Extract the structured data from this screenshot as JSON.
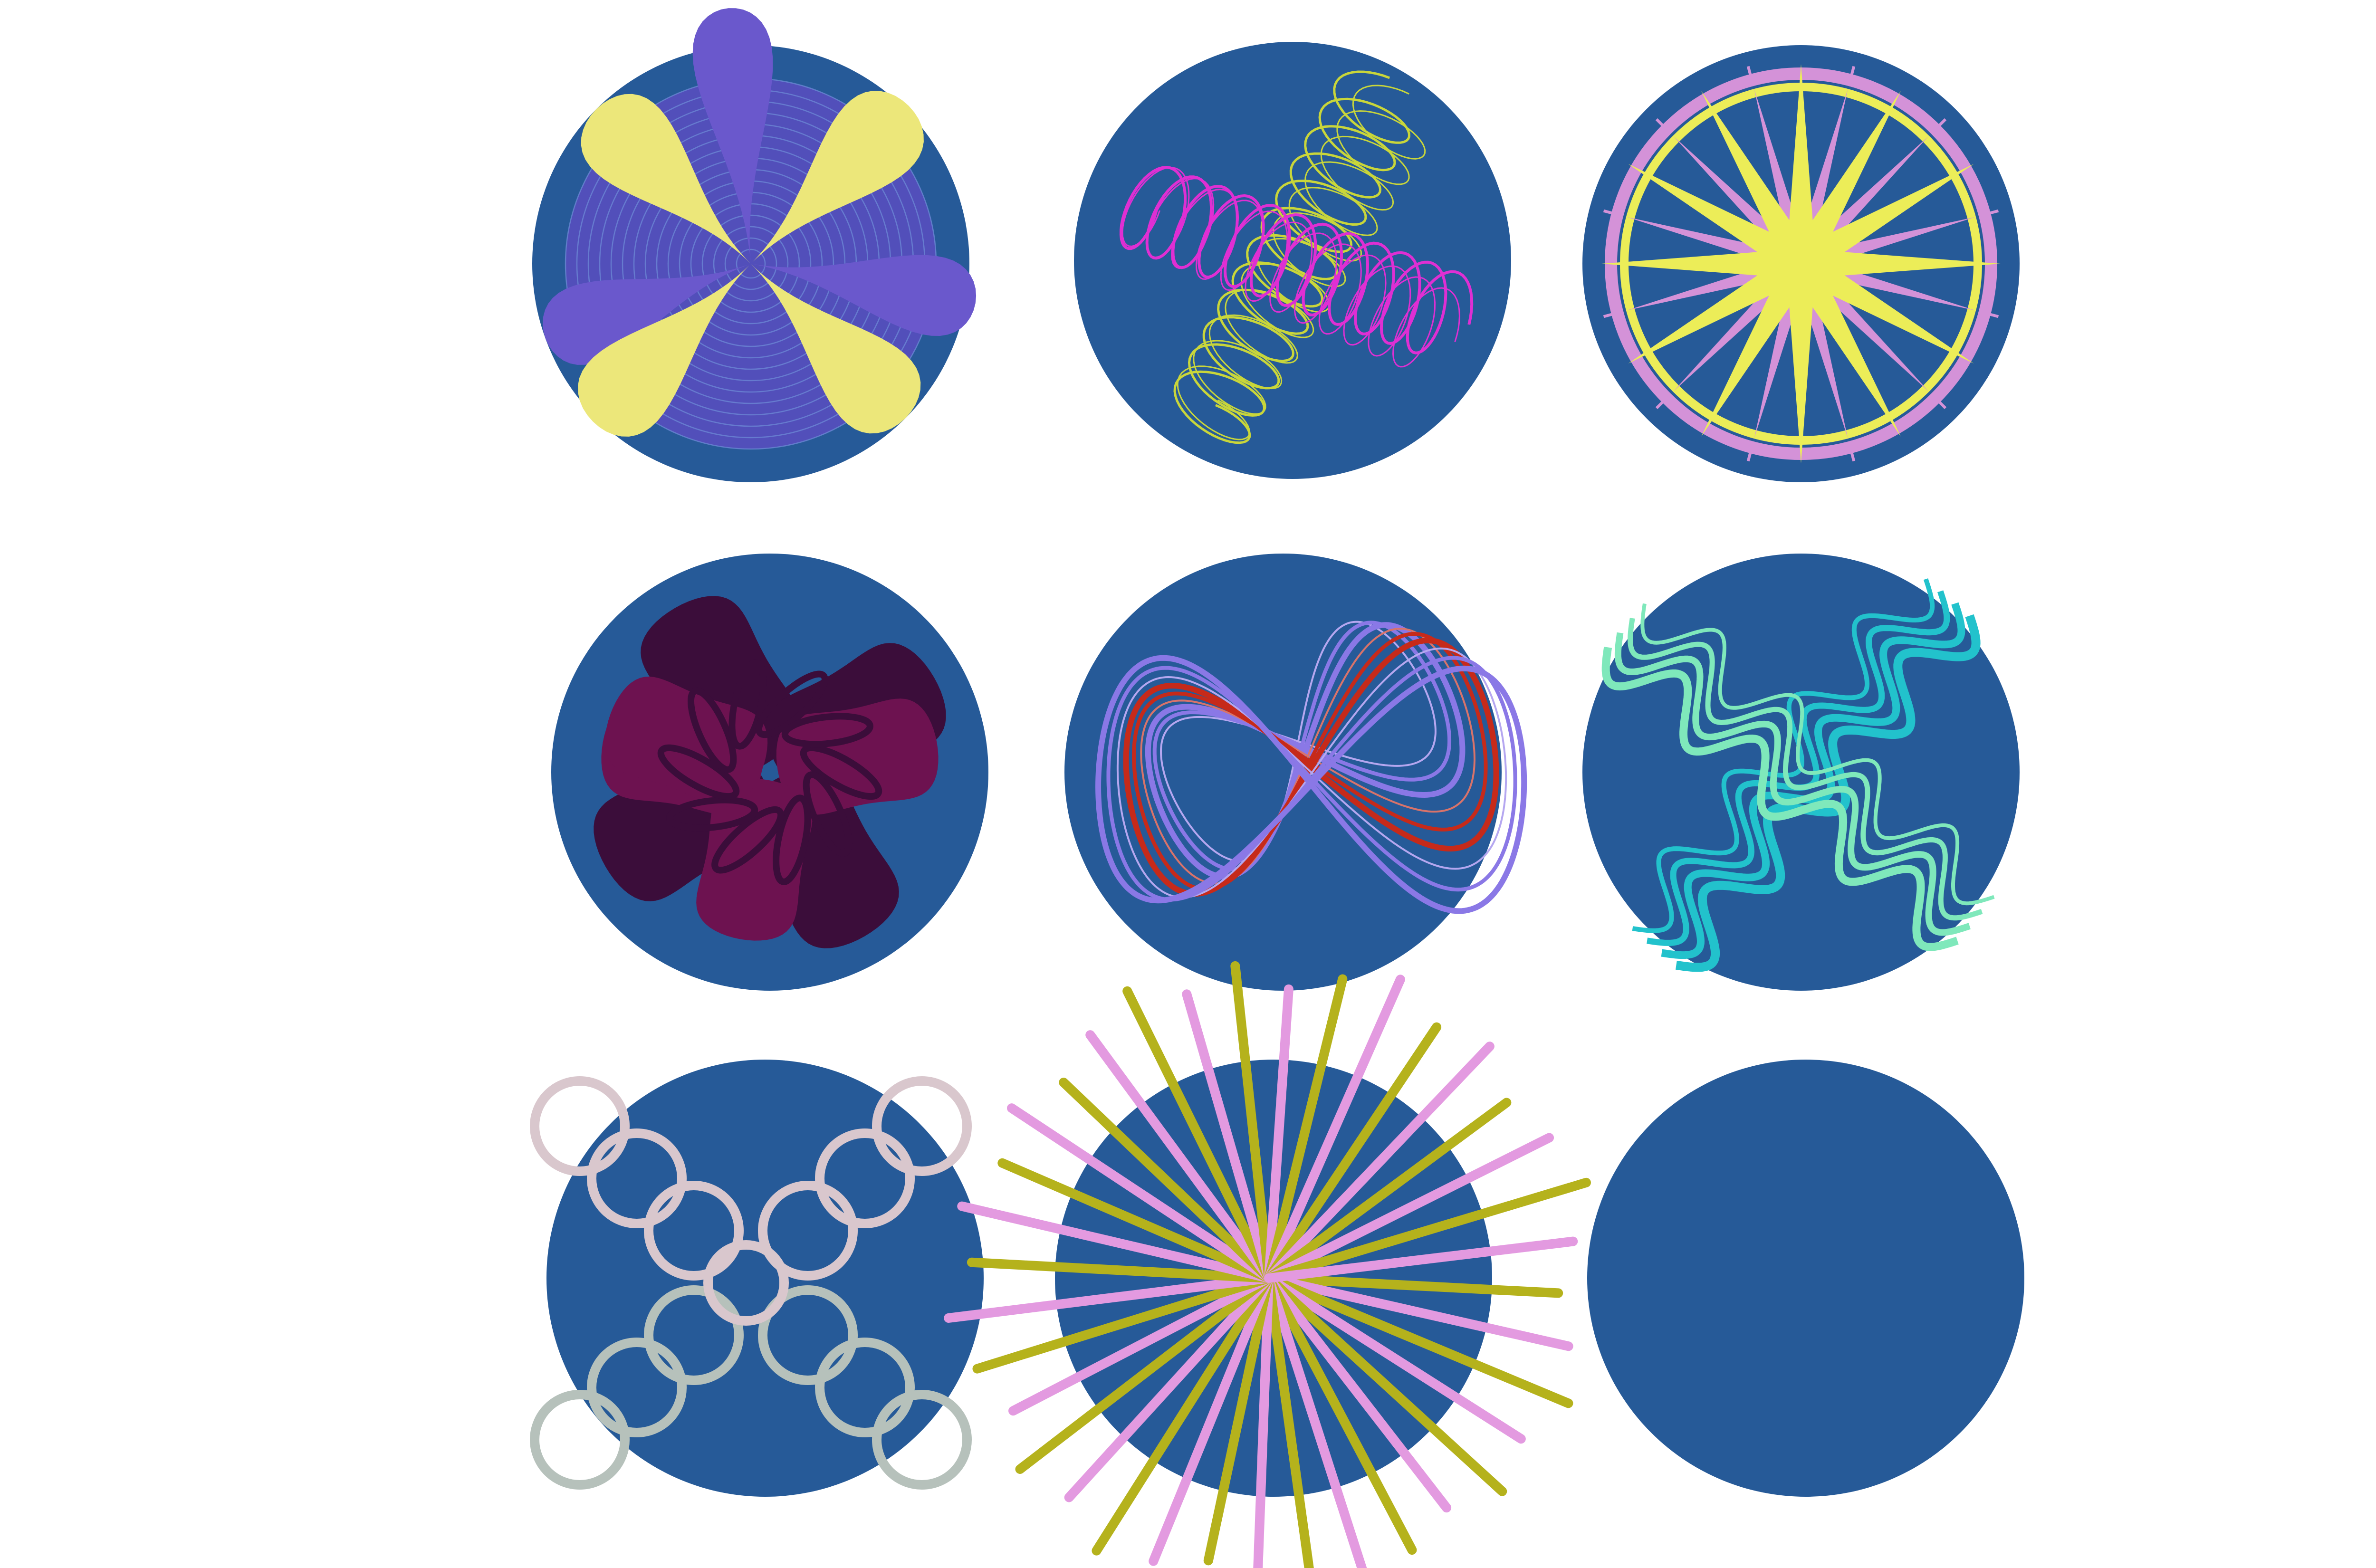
{
  "background": "#ffffff",
  "disc_color": "#265a98",
  "tiles": [
    {
      "id": "ring-petals",
      "pattern": "petals-over-rings",
      "colors": {
        "petals_a": "#ece77a",
        "petals_b": "#6a58cc",
        "rings": "#6f8fd8",
        "fill": "#5b4ec0"
      }
    },
    {
      "id": "coil-x",
      "pattern": "coiled-cross",
      "colors": {
        "coil_a": "#df2fd3",
        "coil_b": "#c9d63a"
      }
    },
    {
      "id": "compass-star",
      "pattern": "compass-star",
      "colors": {
        "star": "#eced58",
        "spokes": "#d492d8",
        "ring_outer": "#d492d8",
        "ring_inner": "#eced58"
      }
    },
    {
      "id": "plum-knot",
      "pattern": "plum-knot",
      "colors": {
        "lobes_a": "#6d1250",
        "lobes_b": "#3b0d3a"
      }
    },
    {
      "id": "loop-fan",
      "pattern": "loop-fan",
      "colors": {
        "loops_a": "#c62a1a",
        "loops_b": "#d9736a",
        "loops_c": "#8a78e6",
        "loops_d": "#b5a7f0"
      }
    },
    {
      "id": "wave-cross",
      "pattern": "wave-cross",
      "colors": {
        "wave_a": "#22c2cc",
        "wave_b": "#7fe8bb"
      }
    },
    {
      "id": "ring-chain",
      "pattern": "ring-chain",
      "colors": {
        "ring_a": "#b6c1bb",
        "ring_b": "#d9c7cd"
      }
    },
    {
      "id": "spike-burst",
      "pattern": "spike-burst",
      "colors": {
        "spike_a": "#e39ae0",
        "spike_b": "#b5b21c"
      }
    },
    {
      "id": "plain-disc",
      "pattern": "plain",
      "colors": {}
    }
  ]
}
